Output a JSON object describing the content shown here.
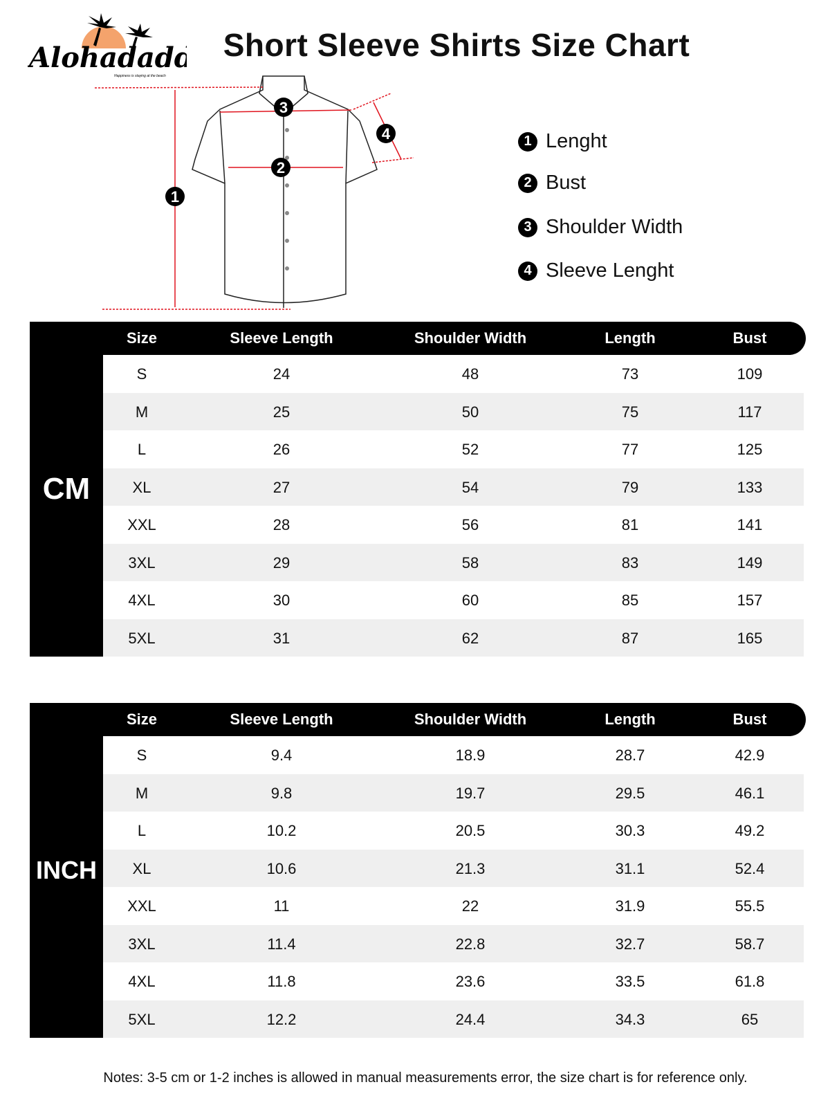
{
  "brand": {
    "name": "Alohadaddy",
    "tagline": "Happiness is staying at the beach",
    "sun_color": "#f4a36c"
  },
  "title": "Short Sleeve Shirts Size Chart",
  "diagram": {
    "markers": [
      "1",
      "2",
      "3",
      "4"
    ],
    "line_color": "#e0141e"
  },
  "legend": [
    {
      "num": "1",
      "label": "Lenght"
    },
    {
      "num": "2",
      "label": "Bust"
    },
    {
      "num": "3",
      "label": "Shoulder Width"
    },
    {
      "num": "4",
      "label": "Sleeve Lenght"
    }
  ],
  "columns": [
    "Size",
    "Sleeve Length",
    "Shoulder Width",
    "Length",
    "Bust"
  ],
  "tables": [
    {
      "unit": "CM",
      "rows": [
        [
          "S",
          "24",
          "48",
          "73",
          "109"
        ],
        [
          "M",
          "25",
          "50",
          "75",
          "117"
        ],
        [
          "L",
          "26",
          "52",
          "77",
          "125"
        ],
        [
          "XL",
          "27",
          "54",
          "79",
          "133"
        ],
        [
          "XXL",
          "28",
          "56",
          "81",
          "141"
        ],
        [
          "3XL",
          "29",
          "58",
          "83",
          "149"
        ],
        [
          "4XL",
          "30",
          "60",
          "85",
          "157"
        ],
        [
          "5XL",
          "31",
          "62",
          "87",
          "165"
        ]
      ]
    },
    {
      "unit": "INCH",
      "rows": [
        [
          "S",
          "9.4",
          "18.9",
          "28.7",
          "42.9"
        ],
        [
          "M",
          "9.8",
          "19.7",
          "29.5",
          "46.1"
        ],
        [
          "L",
          "10.2",
          "20.5",
          "30.3",
          "49.2"
        ],
        [
          "XL",
          "10.6",
          "21.3",
          "31.1",
          "52.4"
        ],
        [
          "XXL",
          "11",
          "22",
          "31.9",
          "55.5"
        ],
        [
          "3XL",
          "11.4",
          "22.8",
          "32.7",
          "58.7"
        ],
        [
          "4XL",
          "11.8",
          "23.6",
          "33.5",
          "61.8"
        ],
        [
          "5XL",
          "12.2",
          "24.4",
          "34.3",
          "65"
        ]
      ]
    }
  ],
  "notes": "Notes: 3-5 cm or 1-2 inches is allowed in manual measurements error, the size chart is for reference only."
}
